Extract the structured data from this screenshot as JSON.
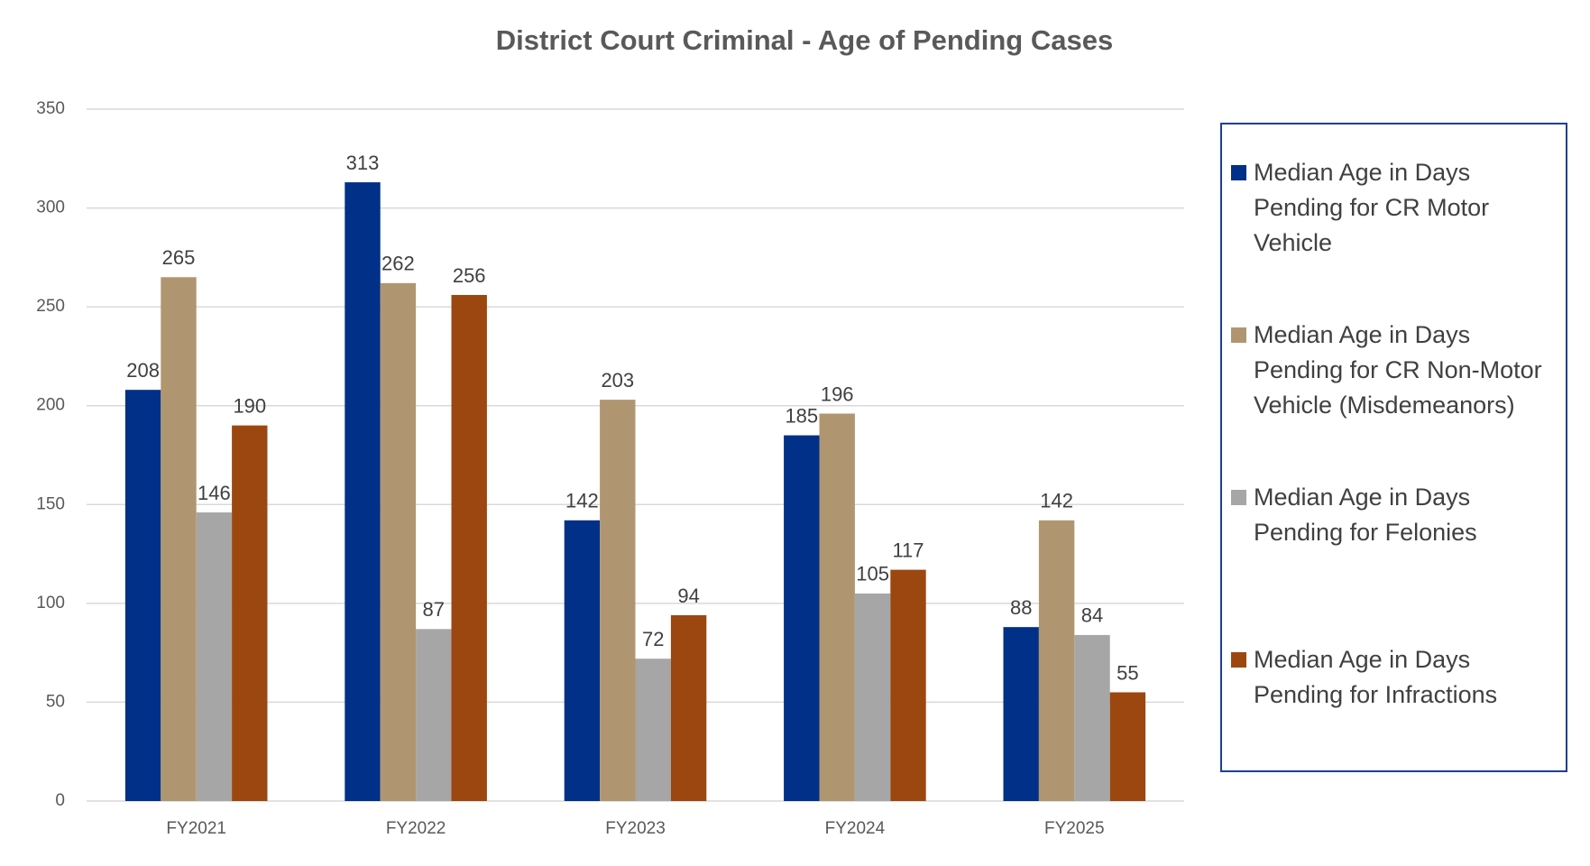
{
  "chart_data": {
    "type": "bar",
    "title": "District Court Criminal - Age of Pending Cases",
    "categories": [
      "FY2021",
      "FY2022",
      "FY2023",
      "FY2024",
      "FY2025"
    ],
    "series": [
      {
        "name": "Median Age in Days Pending for CR Motor Vehicle",
        "color": "#003087",
        "values": [
          208,
          313,
          142,
          185,
          88
        ]
      },
      {
        "name": "Median Age in Days Pending for CR Non-Motor Vehicle (Misdemeanors)",
        "color": "#b09670",
        "values": [
          265,
          262,
          203,
          196,
          142
        ]
      },
      {
        "name": "Median Age in Days Pending for Felonies",
        "color": "#a6a6a6",
        "values": [
          146,
          87,
          72,
          105,
          84
        ]
      },
      {
        "name": "Median Age in Days Pending for Infractions",
        "color": "#9c470f",
        "values": [
          190,
          256,
          94,
          117,
          55
        ]
      }
    ],
    "ylim": [
      0,
      350
    ],
    "yticks": [
      0,
      50,
      100,
      150,
      200,
      250,
      300,
      350
    ],
    "grid": true,
    "legend": "right"
  }
}
